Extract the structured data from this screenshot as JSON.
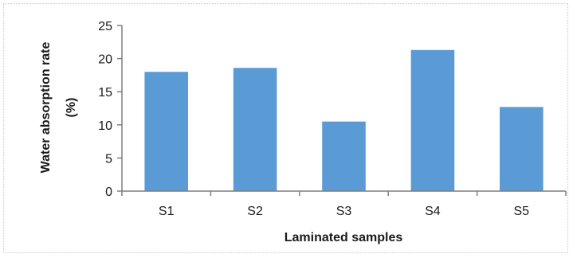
{
  "chart_data": {
    "type": "bar",
    "categories": [
      "S1",
      "S2",
      "S3",
      "S4",
      "S5"
    ],
    "values": [
      18,
      18.6,
      10.5,
      21.3,
      12.7
    ],
    "title": "",
    "xlabel": "Laminated samples",
    "ylabel_lines": [
      "Water absorption rate",
      "(%)"
    ],
    "ylim": [
      0,
      25
    ],
    "yticks": [
      0,
      5,
      10,
      15,
      20,
      25
    ],
    "grid": false,
    "legend": "none",
    "bar_color": "#5b9bd5",
    "axis_color": "#7f7f7f"
  }
}
